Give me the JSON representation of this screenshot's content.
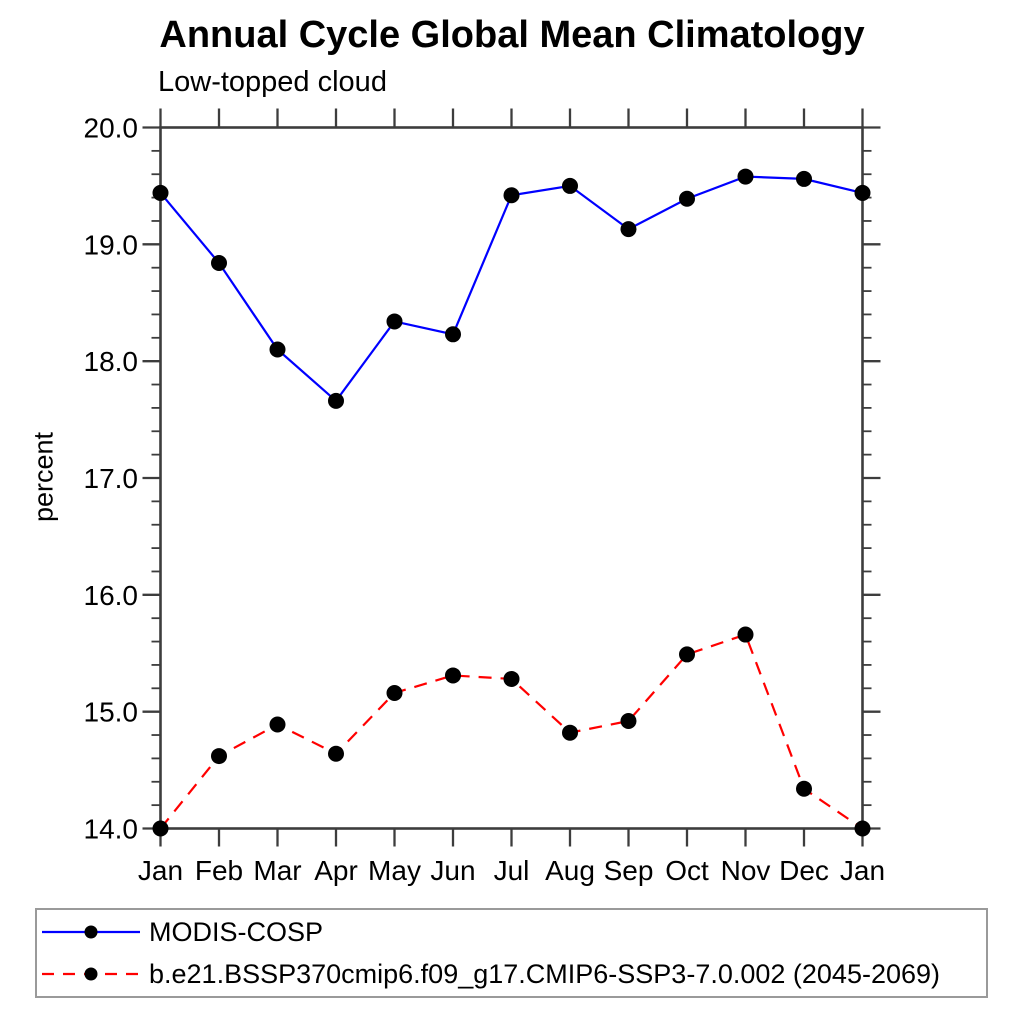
{
  "page": {
    "background": "#ffffff"
  },
  "chart": {
    "title": "Annual Cycle Global Mean Climatology",
    "subtitle": "Low-topped cloud",
    "ylabel": "percent"
  },
  "chart_data": {
    "type": "line",
    "title": "Annual Cycle Global Mean Climatology",
    "subtitle": "Low-topped cloud",
    "xlabel": "",
    "ylabel": "percent",
    "categories": [
      "Jan",
      "Feb",
      "Mar",
      "Apr",
      "May",
      "Jun",
      "Jul",
      "Aug",
      "Sep",
      "Oct",
      "Nov",
      "Dec",
      "Jan"
    ],
    "ylim": [
      14.0,
      20.0
    ],
    "yticks_major": [
      14.0,
      15.0,
      16.0,
      17.0,
      18.0,
      19.0,
      20.0
    ],
    "ytick_labels": [
      "14.0",
      "15.0",
      "16.0",
      "17.0",
      "18.0",
      "19.0",
      "20.0"
    ],
    "ytick_minor_step": 0.2,
    "grid": false,
    "legend_position": "bottom-box",
    "axis_color": "#3d3d3d",
    "text_color": "#000000",
    "series": [
      {
        "name": "MODIS-COSP",
        "color": "#0000ff",
        "line_style": "solid",
        "marker": "filled-circle",
        "marker_color": "#000000",
        "values": [
          19.44,
          18.84,
          18.1,
          17.66,
          18.34,
          18.23,
          19.42,
          19.5,
          19.13,
          19.39,
          19.58,
          19.56,
          19.44
        ]
      },
      {
        "name": "b.e21.BSSP370cmip6.f09_g17.CMIP6-SSP3-7.0.002 (2045-2069)",
        "color": "#ff0000",
        "line_style": "dashed",
        "marker": "filled-circle",
        "marker_color": "#000000",
        "values": [
          14.0,
          14.62,
          14.89,
          14.64,
          15.16,
          15.31,
          15.28,
          14.82,
          14.92,
          15.49,
          15.66,
          14.34,
          14.0
        ]
      }
    ]
  }
}
